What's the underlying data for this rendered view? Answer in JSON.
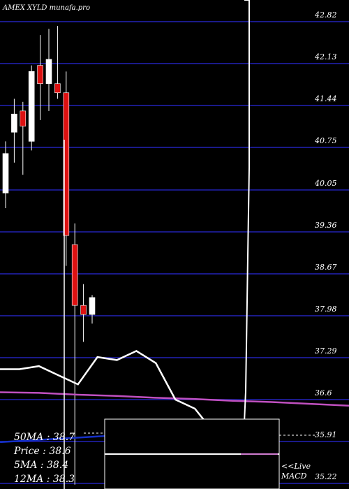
{
  "chart_data": {
    "type": "candlestick",
    "title": "AMEX XYLD munafa.pro",
    "ylim": [
      35.22,
      42.82
    ],
    "y_ticks": [
      42.82,
      42.13,
      41.44,
      40.75,
      40.05,
      39.36,
      38.67,
      37.98,
      37.29,
      36.6,
      35.91,
      35.22
    ],
    "candles": [
      {
        "open": 40.0,
        "close": 40.65,
        "high": 40.85,
        "low": 39.75,
        "color": "white"
      },
      {
        "open": 41.0,
        "close": 41.3,
        "high": 41.55,
        "low": 40.5,
        "color": "white"
      },
      {
        "open": 41.1,
        "close": 41.35,
        "high": 41.5,
        "low": 40.3,
        "color": "red"
      },
      {
        "open": 40.85,
        "close": 42.0,
        "high": 42.1,
        "low": 40.7,
        "color": "white"
      },
      {
        "open": 42.1,
        "close": 41.8,
        "high": 42.6,
        "low": 41.2,
        "color": "red"
      },
      {
        "open": 41.8,
        "close": 42.2,
        "high": 42.7,
        "low": 41.35,
        "color": "white"
      },
      {
        "open": 41.8,
        "close": 41.65,
        "high": 42.75,
        "low": 41.55,
        "color": "red"
      },
      {
        "open": 41.65,
        "close": 39.3,
        "high": 42.0,
        "low": 38.8,
        "color": "red"
      },
      {
        "open": 39.15,
        "close": 38.15,
        "high": 39.5,
        "low": 35.2,
        "color": "red"
      },
      {
        "open": 38.15,
        "close": 38.0,
        "high": 38.5,
        "low": 37.55,
        "color": "red"
      },
      {
        "open": 38.0,
        "close": 38.28,
        "high": 38.32,
        "low": 37.85,
        "color": "white"
      }
    ],
    "ma_line_white": [
      37.1,
      37.1,
      37.15,
      37.0,
      36.85,
      37.3,
      37.25,
      37.4,
      37.2,
      36.6,
      36.45,
      36.05,
      35.9
    ],
    "ma_line_pink": [
      36.72,
      36.71,
      36.68,
      36.66,
      36.63,
      36.61,
      36.58,
      36.56,
      36.53,
      36.5
    ],
    "ma_line_blue": [
      35.9,
      35.95,
      36.0
    ],
    "stats": {
      "ma50": "50MA : 38.7",
      "price": "Price : 38.6",
      "ma5": "5MA : 38.4",
      "ma12": "12MA : 38.3"
    },
    "macd_label_1": "<<Live",
    "macd_label_2": "MACD",
    "colors": {
      "background": "#000000",
      "grid": "#1a1a8a",
      "up_candle": "#ffffff",
      "down_candle": "#dd1111",
      "ma_pink": "#c050c0",
      "ma_blue": "#1530c8"
    }
  }
}
